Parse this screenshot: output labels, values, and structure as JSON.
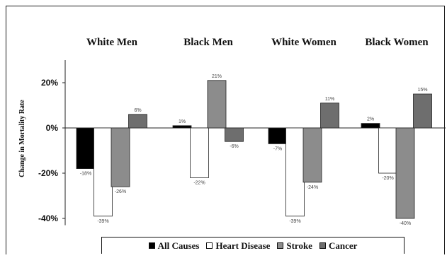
{
  "chart_data": {
    "type": "bar",
    "categories": [
      "White Men",
      "Black Men",
      "White Women",
      "Black Women"
    ],
    "series": [
      {
        "name": "All Causes",
        "values": [
          -18,
          1,
          -7,
          2
        ],
        "labels": [
          "-18%",
          "1%",
          "-7%",
          "2%"
        ],
        "color": "#000000"
      },
      {
        "name": "Heart Disease",
        "values": [
          -39,
          -22,
          -39,
          -20
        ],
        "labels": [
          "-39%",
          "-22%",
          "-39%",
          "-20%"
        ],
        "color": "#ffffff"
      },
      {
        "name": "Stroke",
        "values": [
          -26,
          21,
          -24,
          -40
        ],
        "labels": [
          "-26%",
          "21%",
          "-24%",
          "-40%"
        ],
        "color": "#8c8c8c"
      },
      {
        "name": "Cancer",
        "values": [
          6,
          -6,
          11,
          15
        ],
        "labels": [
          "6%",
          "-6%",
          "11%",
          "15%"
        ],
        "color": "#6e6e6e"
      }
    ],
    "ylabel": "Change in Mortality Rate",
    "yticks": [
      20,
      0,
      -20,
      -40
    ],
    "ytick_labels": [
      "20%",
      "0%",
      "-20%",
      "-40%"
    ],
    "ylim": [
      -43,
      30
    ],
    "grid": false,
    "legend_position": "bottom"
  }
}
